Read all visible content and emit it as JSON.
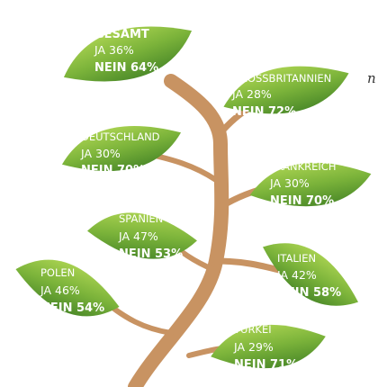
{
  "fragment": "n",
  "leaves": [
    {
      "label": "GESAMT",
      "ja": "JA 36%",
      "nein": "NEIN 64%"
    },
    {
      "label": "GROSSBRITANNIEN",
      "ja": "JA 28%",
      "nein": "NEIN 72%"
    },
    {
      "label": "DEUTSCHLAND",
      "ja": "JA 30%",
      "nein": "NEIN 70%"
    },
    {
      "label": "FRANKREICH",
      "ja": "JA 30%",
      "nein": "NEIN 70%"
    },
    {
      "label": "SPANIEN",
      "ja": "JA 47%",
      "nein": "NEIN 53%"
    },
    {
      "label": "POLEN",
      "ja": "JA 46%",
      "nein": "NEIN 54%"
    },
    {
      "label": "ITALIEN",
      "ja": "JA 42%",
      "nein": "NEIN 58%"
    },
    {
      "label": "TÜRKEI",
      "ja": "JA 29%",
      "nein": "NEIN 71%"
    }
  ]
}
